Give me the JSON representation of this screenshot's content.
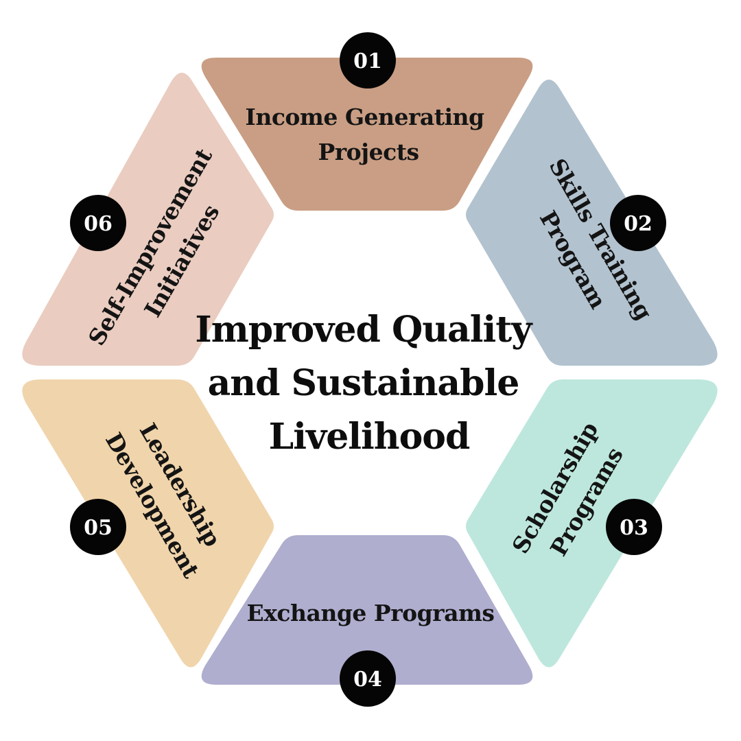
{
  "center": {
    "lines": [
      "Improved Quality",
      "and Sustainable",
      "Livelihood"
    ]
  },
  "segments": [
    {
      "number": "01",
      "lines": [
        "Income Generating",
        "Projects"
      ],
      "color": "#c99e84"
    },
    {
      "number": "02",
      "lines": [
        "Skills Training",
        "Program"
      ],
      "color": "#b2c2cf"
    },
    {
      "number": "03",
      "lines": [
        "Scholarship",
        "Programs"
      ],
      "color": "#bde7dc"
    },
    {
      "number": "04",
      "lines": [
        "Exchange Programs"
      ],
      "color": "#afaecf"
    },
    {
      "number": "05",
      "lines": [
        "Leadership",
        "Development"
      ],
      "color": "#f0d4ab"
    },
    {
      "number": "06",
      "lines": [
        "Self-Improvement",
        "Initiatives"
      ],
      "color": "#eaccc0"
    }
  ],
  "badge_color": "#050505"
}
